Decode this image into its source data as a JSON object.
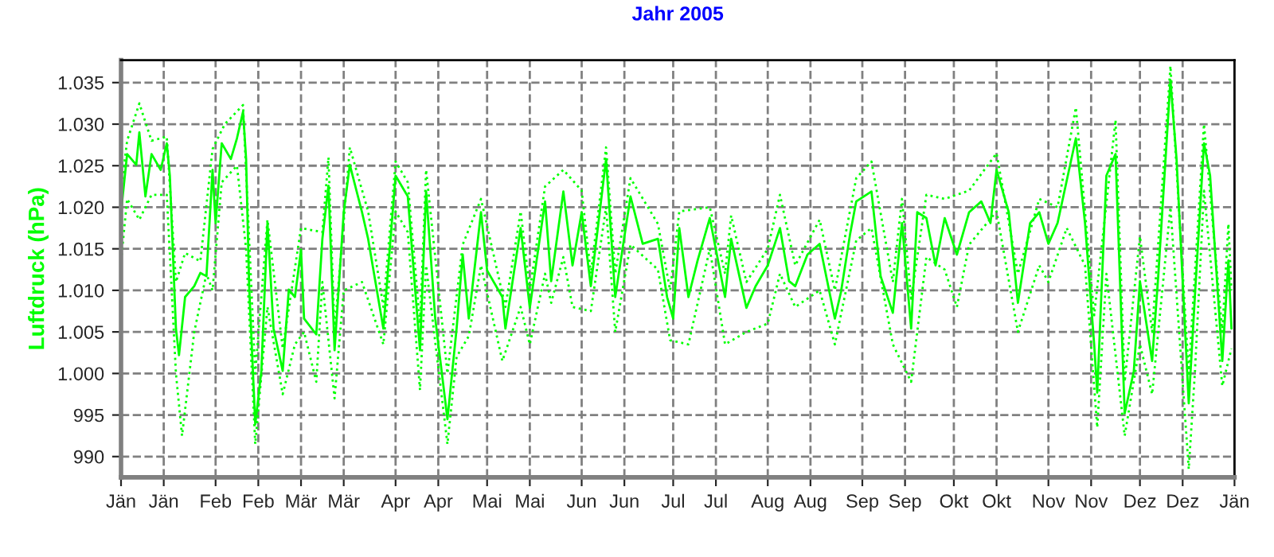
{
  "chart_data": {
    "type": "line",
    "title": "Jahr 2005",
    "ylabel": "Luftdruck (hPa)",
    "xlim": [
      "2005-01-01",
      "2006-01-01"
    ],
    "ylim": [
      987.5,
      1037.7
    ],
    "xticks": [
      {
        "value": "2005-01-01",
        "label": "Jän"
      },
      {
        "value": "2005-01-15",
        "label": "Jän"
      },
      {
        "value": "2005-02-01",
        "label": "Feb"
      },
      {
        "value": "2005-02-15",
        "label": "Feb"
      },
      {
        "value": "2005-03-01",
        "label": "Mär"
      },
      {
        "value": "2005-03-15",
        "label": "Mär"
      },
      {
        "value": "2005-04-01",
        "label": "Apr"
      },
      {
        "value": "2005-04-15",
        "label": "Apr"
      },
      {
        "value": "2005-05-01",
        "label": "Mai"
      },
      {
        "value": "2005-05-15",
        "label": "Mai"
      },
      {
        "value": "2005-06-01",
        "label": "Jun"
      },
      {
        "value": "2005-06-15",
        "label": "Jun"
      },
      {
        "value": "2005-07-01",
        "label": "Jul"
      },
      {
        "value": "2005-07-15",
        "label": "Jul"
      },
      {
        "value": "2005-08-01",
        "label": "Aug"
      },
      {
        "value": "2005-08-15",
        "label": "Aug"
      },
      {
        "value": "2005-09-01",
        "label": "Sep"
      },
      {
        "value": "2005-09-15",
        "label": "Sep"
      },
      {
        "value": "2005-10-01",
        "label": "Okt"
      },
      {
        "value": "2005-10-15",
        "label": "Okt"
      },
      {
        "value": "2005-11-01",
        "label": "Nov"
      },
      {
        "value": "2005-11-15",
        "label": "Nov"
      },
      {
        "value": "2005-12-01",
        "label": "Dez"
      },
      {
        "value": "2005-12-15",
        "label": "Dez"
      },
      {
        "value": "2006-01-01",
        "label": "Jän"
      }
    ],
    "yticks": [
      990,
      995,
      {
        "value": 1000,
        "label": "1.000"
      },
      {
        "value": 1005,
        "label": "1.005"
      },
      {
        "value": 1010,
        "label": "1.010"
      },
      {
        "value": 1015,
        "label": "1.015"
      },
      {
        "value": 1020,
        "label": "1.020"
      },
      {
        "value": 1025,
        "label": "1.025"
      },
      {
        "value": 1030,
        "label": "1.030"
      },
      {
        "value": 1035,
        "label": "1.035"
      }
    ],
    "grid": true,
    "series": [
      {
        "color": "#00ff00",
        "line_style": "dotted",
        "x": [
          "2005-01-01",
          "2005-01-03",
          "2005-01-07",
          "2005-01-11",
          "2005-01-16",
          "2005-01-19",
          "2005-01-22",
          "2005-01-27",
          "2005-01-31",
          "2005-02-04",
          "2005-02-10",
          "2005-02-14",
          "2005-02-18",
          "2005-02-23",
          "2005-03-01",
          "2005-03-08",
          "2005-03-10",
          "2005-03-12",
          "2005-03-17",
          "2005-03-23",
          "2005-03-28",
          "2005-04-01",
          "2005-04-05",
          "2005-04-09",
          "2005-04-11",
          "2005-04-18",
          "2005-04-23",
          "2005-04-29",
          "2005-05-07",
          "2005-05-12",
          "2005-05-15",
          "2005-05-20",
          "2005-05-26",
          "2005-06-01",
          "2005-06-04",
          "2005-06-09",
          "2005-06-12",
          "2005-06-17",
          "2005-06-26",
          "2005-06-30",
          "2005-07-03",
          "2005-07-13",
          "2005-07-18",
          "2005-07-20",
          "2005-07-25",
          "2005-08-01",
          "2005-08-05",
          "2005-08-10",
          "2005-08-18",
          "2005-08-23",
          "2005-08-30",
          "2005-09-04",
          "2005-09-11",
          "2005-09-14",
          "2005-09-17",
          "2005-09-22",
          "2005-09-28",
          "2005-10-06",
          "2005-10-15",
          "2005-10-22",
          "2005-10-29",
          "2005-11-04",
          "2005-11-10",
          "2005-11-16",
          "2005-11-23",
          "2005-11-26",
          "2005-12-01",
          "2005-12-05",
          "2005-12-11",
          "2005-12-17",
          "2005-12-22",
          "2005-12-28",
          "2005-12-30",
          "2005-12-31"
        ],
        "values": [
          1022,
          1028,
          1032.5,
          1028,
          1028.5,
          1011,
          1014.5,
          1013.5,
          1027,
          1030,
          1032.3,
          1000,
          1018.5,
          1003,
          1017.5,
          1017,
          1026,
          1005,
          1027.2,
          1019.5,
          1008,
          1025.5,
          1023,
          1006,
          1024.5,
          1000,
          1015.5,
          1021,
          1008,
          1019.5,
          1010,
          1022.5,
          1024.5,
          1022,
          1012,
          1027.2,
          1012,
          1023.5,
          1018,
          1010,
          1019.5,
          1020,
          1012,
          1019,
          1011,
          1015,
          1021.5,
          1013,
          1018.5,
          1010,
          1023.5,
          1025.5,
          1011,
          1021,
          1009,
          1021.5,
          1021,
          1022,
          1026.5,
          1012,
          1021,
          1020,
          1032,
          1007,
          1030.5,
          999,
          1016.5,
          1005,
          1037,
          1000,
          1030,
          1005,
          1018,
          1010
        ]
      },
      {
        "color": "#00ff00",
        "line_style": "dotted",
        "x": [
          "2005-01-01",
          "2005-01-03",
          "2005-01-07",
          "2005-01-11",
          "2005-01-16",
          "2005-01-19",
          "2005-01-21",
          "2005-01-25",
          "2005-01-29",
          "2005-01-31",
          "2005-02-03",
          "2005-02-08",
          "2005-02-11",
          "2005-02-14",
          "2005-02-18",
          "2005-02-23",
          "2005-02-27",
          "2005-03-02",
          "2005-03-06",
          "2005-03-08",
          "2005-03-12",
          "2005-03-15",
          "2005-03-21",
          "2005-03-28",
          "2005-04-01",
          "2005-04-05",
          "2005-04-09",
          "2005-04-11",
          "2005-04-18",
          "2005-04-21",
          "2005-04-25",
          "2005-04-29",
          "2005-05-06",
          "2005-05-12",
          "2005-05-15",
          "2005-05-20",
          "2005-05-22",
          "2005-05-26",
          "2005-05-29",
          "2005-06-04",
          "2005-06-09",
          "2005-06-12",
          "2005-06-17",
          "2005-06-26",
          "2005-06-30",
          "2005-07-06",
          "2005-07-13",
          "2005-07-18",
          "2005-07-25",
          "2005-08-01",
          "2005-08-05",
          "2005-08-10",
          "2005-08-18",
          "2005-08-23",
          "2005-08-30",
          "2005-09-04",
          "2005-09-11",
          "2005-09-17",
          "2005-09-22",
          "2005-09-28",
          "2005-10-02",
          "2005-10-06",
          "2005-10-15",
          "2005-10-22",
          "2005-10-29",
          "2005-11-01",
          "2005-11-07",
          "2005-11-13",
          "2005-11-17",
          "2005-11-20",
          "2005-11-26",
          "2005-12-01",
          "2005-12-05",
          "2005-12-11",
          "2005-12-17",
          "2005-12-19",
          "2005-12-22",
          "2005-12-28",
          "2005-12-31"
        ],
        "values": [
          1013.5,
          1021,
          1018.5,
          1021.5,
          1021.5,
          1000,
          992.5,
          1005,
          1012,
          1010,
          1023,
          1025,
          1015,
          991.5,
          1008,
          997.5,
          1003.5,
          1005,
          999,
          1011,
          997,
          1010,
          1011,
          1003.5,
          1019.5,
          1017,
          998,
          1013,
          991.5,
          1002,
          1004.5,
          1013,
          1001.5,
          1008,
          1003.5,
          1012,
          1008.5,
          1014,
          1008,
          1007.5,
          1020,
          1005,
          1015.5,
          1012.5,
          1004,
          1003.5,
          1015,
          1003.5,
          1005,
          1006,
          1012,
          1008,
          1010,
          1003.5,
          1016,
          1017.5,
          1003.5,
          999,
          1014,
          1012.5,
          1008,
          1015.5,
          1019.5,
          1005,
          1013,
          1011,
          1017.5,
          1013,
          993.5,
          1012,
          992.5,
          1003.5,
          997.5,
          1020,
          988.5,
          1000,
          1022,
          998.5,
          1003
        ]
      },
      {
        "color": "#00ff00",
        "line_style": "solid",
        "x": [
          "2005-01-01",
          "2005-01-03",
          "2005-01-06",
          "2005-01-07",
          "2005-01-09",
          "2005-01-11",
          "2005-01-14",
          "2005-01-16",
          "2005-01-17",
          "2005-01-19",
          "2005-01-20",
          "2005-01-22",
          "2005-01-25",
          "2005-01-27",
          "2005-01-29",
          "2005-01-31",
          "2005-02-01",
          "2005-02-03",
          "2005-02-06",
          "2005-02-08",
          "2005-02-10",
          "2005-02-11",
          "2005-02-12",
          "2005-02-14",
          "2005-02-16",
          "2005-02-18",
          "2005-02-20",
          "2005-02-23",
          "2005-02-25",
          "2005-02-27",
          "2005-03-01",
          "2005-03-02",
          "2005-03-06",
          "2005-03-08",
          "2005-03-10",
          "2005-03-12",
          "2005-03-15",
          "2005-03-17",
          "2005-03-21",
          "2005-03-23",
          "2005-03-28",
          "2005-04-01",
          "2005-04-05",
          "2005-04-09",
          "2005-04-11",
          "2005-04-14",
          "2005-04-18",
          "2005-04-21",
          "2005-04-23",
          "2005-04-25",
          "2005-04-29",
          "2005-05-01",
          "2005-05-06",
          "2005-05-07",
          "2005-05-12",
          "2005-05-15",
          "2005-05-20",
          "2005-05-22",
          "2005-05-26",
          "2005-05-29",
          "2005-06-01",
          "2005-06-04",
          "2005-06-09",
          "2005-06-12",
          "2005-06-17",
          "2005-06-21",
          "2005-06-26",
          "2005-06-29",
          "2005-07-01",
          "2005-07-03",
          "2005-07-06",
          "2005-07-09",
          "2005-07-13",
          "2005-07-18",
          "2005-07-20",
          "2005-07-25",
          "2005-07-28",
          "2005-08-01",
          "2005-08-05",
          "2005-08-08",
          "2005-08-10",
          "2005-08-14",
          "2005-08-18",
          "2005-08-23",
          "2005-08-25",
          "2005-08-28",
          "2005-08-30",
          "2005-09-04",
          "2005-09-07",
          "2005-09-11",
          "2005-09-14",
          "2005-09-17",
          "2005-09-19",
          "2005-09-22",
          "2005-09-25",
          "2005-09-28",
          "2005-10-02",
          "2005-10-06",
          "2005-10-10",
          "2005-10-13",
          "2005-10-15",
          "2005-10-19",
          "2005-10-22",
          "2005-10-26",
          "2005-10-29",
          "2005-11-01",
          "2005-11-04",
          "2005-11-07",
          "2005-11-10",
          "2005-11-13",
          "2005-11-16",
          "2005-11-17",
          "2005-11-20",
          "2005-11-23",
          "2005-11-26",
          "2005-11-29",
          "2005-12-01",
          "2005-12-05",
          "2005-12-07",
          "2005-12-11",
          "2005-12-13",
          "2005-12-17",
          "2005-12-19",
          "2005-12-22",
          "2005-12-24",
          "2005-12-28",
          "2005-12-30",
          "2005-12-31"
        ],
        "values": [
          1019.4,
          1026.4,
          1025.1,
          1029,
          1021.3,
          1026.4,
          1024.5,
          1027.7,
          1023.8,
          1005.4,
          1002.2,
          1009.2,
          1010.5,
          1012.1,
          1011.7,
          1024.5,
          1018.1,
          1027.7,
          1025.8,
          1028.3,
          1031.5,
          1025.8,
          1010.5,
          993.9,
          1000.3,
          1018.1,
          1005.4,
          1000.3,
          1010.1,
          1009.2,
          1014.9,
          1006.6,
          1004.7,
          1016.2,
          1022.6,
          1002.8,
          1019.4,
          1025.1,
          1019.4,
          1016.2,
          1005.4,
          1023.8,
          1021.3,
          1002.8,
          1021.9,
          1006.6,
          994.5,
          1005.4,
          1014.3,
          1006.6,
          1019.4,
          1012.4,
          1009.2,
          1005.4,
          1017.5,
          1007.9,
          1020.7,
          1011.1,
          1021.9,
          1013,
          1019.4,
          1010.5,
          1025.8,
          1009.2,
          1021.3,
          1015.6,
          1016.2,
          1009.2,
          1006.6,
          1017.5,
          1009.2,
          1013.6,
          1018.7,
          1009.2,
          1016.2,
          1007.9,
          1010.5,
          1013,
          1017.5,
          1011.1,
          1010.5,
          1014.3,
          1015.6,
          1006.6,
          1009.8,
          1016.8,
          1020.7,
          1021.9,
          1011.7,
          1007.3,
          1018.1,
          1005.4,
          1019.4,
          1018.7,
          1013,
          1018.7,
          1014.3,
          1019.4,
          1020.7,
          1018.1,
          1024.5,
          1019.4,
          1008.5,
          1018.1,
          1019.4,
          1015.6,
          1018.1,
          1023.2,
          1028.3,
          1018.1,
          1003.5,
          997.7,
          1023.8,
          1026.4,
          995.2,
          1000.3,
          1011.1,
          1001.5,
          1011.7,
          1035.3,
          1025.8,
          996.4,
          1009.2,
          1027.7,
          1023.8,
          1001.5,
          1013.6,
          1005.4
        ]
      }
    ]
  }
}
